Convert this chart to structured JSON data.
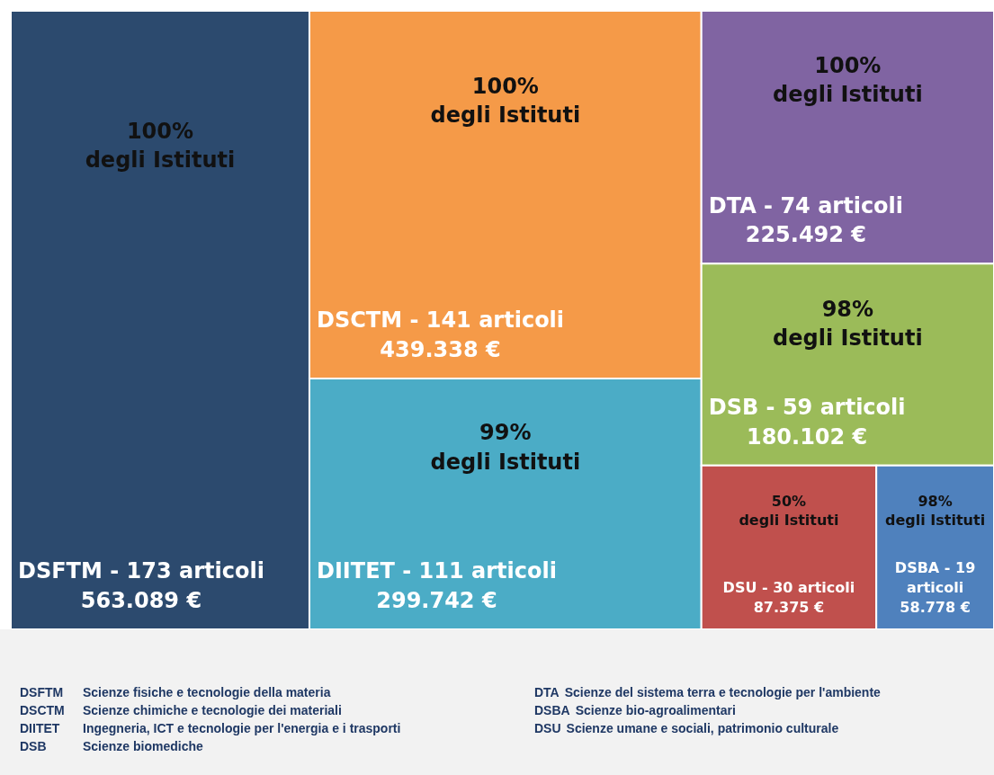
{
  "chart_data": {
    "type": "other",
    "categories": [
      "DSFTM - 173 articoli",
      "DSCTM - 141 articoli",
      "DIITET - 111 articoli",
      "DTA - 74 articoli",
      "DSB - 59 articoli",
      "DSU - 30 articoli",
      "DSBA - 19 articoli"
    ],
    "values": [
      563089,
      439338,
      299742,
      225492,
      180102,
      87375,
      58778
    ],
    "value_labels": [
      "563.089 €",
      "439.338 €",
      "299.742 €",
      "225.492 €",
      "180.102 €",
      "87.375 €",
      "58.778 €"
    ],
    "colors": [
      "#2c4a6e",
      "#f59a48",
      "#4bacc6",
      "#8064a2",
      "#9bbb59",
      "#c0504d",
      "#4f81bd"
    ],
    "annotations": [
      {
        "text": "100%\ndegli Istituti",
        "x": "DSFTM - 173 articoli"
      },
      {
        "text": "100%\ndegli Istituti",
        "x": "DSCTM - 141 articoli"
      },
      {
        "text": "99%\ndegli Istituti",
        "x": "DIITET - 111 articoli"
      },
      {
        "text": "100%\ndegli Istituti",
        "x": "DTA - 74 articoli"
      },
      {
        "text": "98%\ndegli Istituti",
        "x": "DSB - 59 articoli"
      },
      {
        "text": "50%\ndegli Istituti",
        "x": "DSU - 30 articoli"
      },
      {
        "text": "98%\ndegli Istituti",
        "x": "DSBA - 19 articoli"
      },
      "DSFTM\tScienze fisiche e tecnologie della materia",
      "DSCTM\tScienze chimiche e tecnologie dei materiali",
      "DIITET\tIngegneria, ICT e tecnologie per l'energia e i trasporti",
      "DSB\tScienze biomediche",
      "DTA\tScienze del sistema terra e tecnologie per l'ambiente",
      "DSBA\tScienze bio-agroalimentari",
      "DSU\tScienze umane e sociali, patrimonio culturale"
    ]
  }
}
